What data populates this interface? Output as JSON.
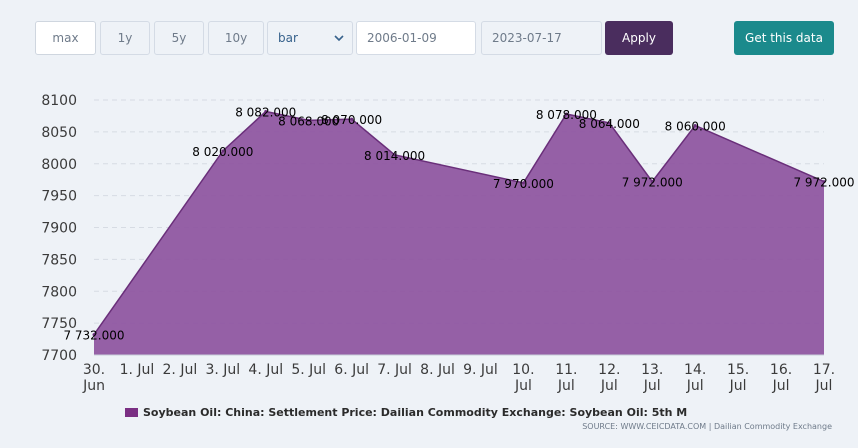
{
  "toolbar": {
    "ranges": [
      "max",
      "1y",
      "5y",
      "10y"
    ],
    "active_range": "max",
    "chart_type": "bar",
    "start_date": "2006-01-09",
    "end_date": "2023-07-17",
    "apply_label": "Apply",
    "get_data_label": "Get this data"
  },
  "source_text": "SOURCE: WWW.CEICDATA.COM | Dailian Commodity Exchange",
  "colors": {
    "fill": "#8f57a1",
    "stroke": "#6a2f7a",
    "legend_swatch": "#7a2f83",
    "apply": "#4a2d5e",
    "get_data": "#1b8a8c"
  },
  "chart_data": {
    "type": "area",
    "title": "",
    "xlabel": "",
    "ylabel": "",
    "categories": [
      "30. Jun",
      "1. Jul",
      "2. Jul",
      "3. Jul",
      "4. Jul",
      "5. Jul",
      "6. Jul",
      "7. Jul",
      "8. Jul",
      "9. Jul",
      "10. Jul",
      "11. Jul",
      "12. Jul",
      "13. Jul",
      "14. Jul",
      "15. Jul",
      "16. Jul",
      "17. Jul"
    ],
    "x_tick_labels": [
      [
        "30.",
        "Jun"
      ],
      [
        "1. Jul"
      ],
      [
        "2. Jul"
      ],
      [
        "3. Jul"
      ],
      [
        "4. Jul"
      ],
      [
        "5. Jul"
      ],
      [
        "6. Jul"
      ],
      [
        "7. Jul"
      ],
      [
        "8. Jul"
      ],
      [
        "9. Jul"
      ],
      [
        "10.",
        "Jul"
      ],
      [
        "11.",
        "Jul"
      ],
      [
        "12.",
        "Jul"
      ],
      [
        "13.",
        "Jul"
      ],
      [
        "14.",
        "Jul"
      ],
      [
        "15.",
        "Jul"
      ],
      [
        "16.",
        "Jul"
      ],
      [
        "17.",
        "Jul"
      ]
    ],
    "series": [
      {
        "name": "Soybean Oil: China: Settlement Price: Dailian Commodity Exchange: Soybean Oil: 5th M",
        "points": [
          {
            "day": 0,
            "value": 7732,
            "label": "7 732.000"
          },
          {
            "day": 3,
            "value": 8020,
            "label": "8 020.000"
          },
          {
            "day": 4,
            "value": 8082,
            "label": "8 082.000"
          },
          {
            "day": 5,
            "value": 8068,
            "label": "8 068.000"
          },
          {
            "day": 6,
            "value": 8070,
            "label": "8 070.000"
          },
          {
            "day": 7,
            "value": 8014,
            "label": "8 014.000"
          },
          {
            "day": 10,
            "value": 7970,
            "label": "7 970.000"
          },
          {
            "day": 11,
            "value": 8078,
            "label": "8 078.000"
          },
          {
            "day": 12,
            "value": 8064,
            "label": "8 064.000"
          },
          {
            "day": 13,
            "value": 7972,
            "label": "7 972.000"
          },
          {
            "day": 14,
            "value": 8060,
            "label": "8 060.000"
          },
          {
            "day": 17,
            "value": 7972,
            "label": "7 972.000"
          }
        ]
      }
    ],
    "y_ticks": [
      7700,
      7750,
      7800,
      7850,
      7900,
      7950,
      8000,
      8050,
      8100
    ],
    "ylim": [
      7700,
      8100
    ],
    "grid": "horizontal dashed",
    "legend_position": "bottom"
  }
}
